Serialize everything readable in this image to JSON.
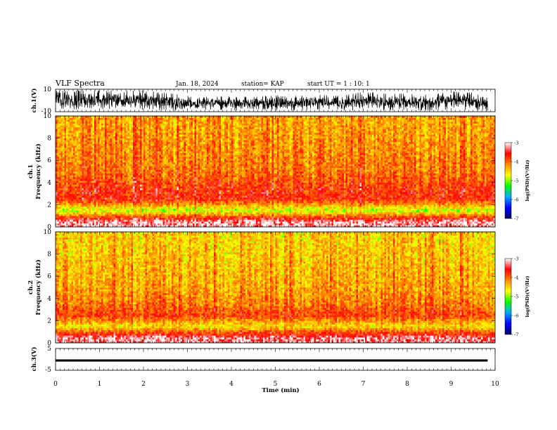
{
  "header": {
    "title": "VLF Spectra",
    "date": "Jan. 18, 2024",
    "station": "station= KAP",
    "start": "start UT =  1 : 10: 1"
  },
  "chart_data": [
    {
      "type": "line",
      "panel": "ch1-waveform",
      "ylabel": "ch.1(V)",
      "ylim": [
        -10,
        10
      ],
      "yticks": [
        "10",
        "-10"
      ],
      "xlim": [
        0,
        9.83
      ],
      "color": "#000000",
      "x": [
        0,
        0.5,
        1,
        1.5,
        2,
        2.5,
        3,
        3.5,
        4,
        4.5,
        5,
        5.5,
        6,
        6.5,
        7,
        7.5,
        8,
        8.5,
        9,
        9.5,
        9.83
      ],
      "envelope_high": [
        9,
        9,
        9,
        9,
        9,
        7,
        4,
        3,
        4,
        3,
        5,
        4,
        5,
        4,
        8,
        6,
        6,
        5,
        8,
        7,
        6
      ],
      "envelope_low": [
        -7,
        -8,
        -8,
        -7,
        -8,
        -9,
        -9,
        -8,
        -9,
        -8,
        -9,
        -9,
        -8,
        -9,
        -9,
        -9,
        -8,
        -9,
        -8,
        -9,
        -9
      ]
    },
    {
      "type": "heatmap",
      "panel": "ch1-spectrogram",
      "ylabel_top": "ch.1",
      "ylabel": "Frequency (kHz)",
      "ylim": [
        0,
        10
      ],
      "yticks": [
        "0",
        "2",
        "4",
        "6",
        "8",
        "10"
      ],
      "xlim": [
        0,
        10
      ],
      "freq_bands_khz": [
        0.5,
        1.5,
        2.5,
        3.5,
        5.0,
        7.0,
        9.0
      ],
      "log_psd": [
        -3.2,
        -4.9,
        -3.7,
        -3.8,
        -4.1,
        -4.2,
        -4.3
      ],
      "colorbar": {
        "label": "log(PSD)(V²/Hz)",
        "ticks": [
          "-3",
          "-4",
          "-5",
          "-6",
          "-7"
        ],
        "range": [
          -7,
          -3
        ],
        "colors": [
          "#000066",
          "#0000ff",
          "#00aaff",
          "#00ff00",
          "#ffff00",
          "#ff8800",
          "#ff0000",
          "#ffffff"
        ]
      }
    },
    {
      "type": "heatmap",
      "panel": "ch2-spectrogram",
      "ylabel_top": "ch.2",
      "ylabel": "Frequency (kHz)",
      "ylim": [
        0,
        10
      ],
      "yticks": [
        "0",
        "2",
        "4",
        "6",
        "8",
        "10"
      ],
      "xlim": [
        0,
        10
      ],
      "freq_bands_khz": [
        0.5,
        1.5,
        2.5,
        3.5,
        5.0,
        7.0,
        9.0
      ],
      "log_psd": [
        -3.3,
        -4.6,
        -3.8,
        -4.1,
        -4.3,
        -4.4,
        -4.5
      ],
      "colorbar": {
        "label": "log(PSD)(V²/Hz)",
        "ticks": [
          "-3",
          "-4",
          "-5",
          "-6",
          "-7"
        ],
        "range": [
          -7,
          -3
        ],
        "colors": [
          "#000066",
          "#0000ff",
          "#00aaff",
          "#00ff00",
          "#ffff00",
          "#ff8800",
          "#ff0000",
          "#ffffff"
        ]
      }
    },
    {
      "type": "line",
      "panel": "ch3-waveform",
      "ylabel": "ch.3(V)",
      "ylim": [
        -5,
        5
      ],
      "yticks": [
        "5",
        "-5"
      ],
      "xlim": [
        0,
        9.83
      ],
      "color": "#000000",
      "band": [
        -1,
        0
      ]
    }
  ],
  "xaxis": {
    "label": "Time (min)",
    "ticks": [
      "0",
      "1",
      "2",
      "3",
      "4",
      "5",
      "6",
      "7",
      "8",
      "9",
      "10"
    ],
    "range": [
      0,
      10
    ]
  }
}
